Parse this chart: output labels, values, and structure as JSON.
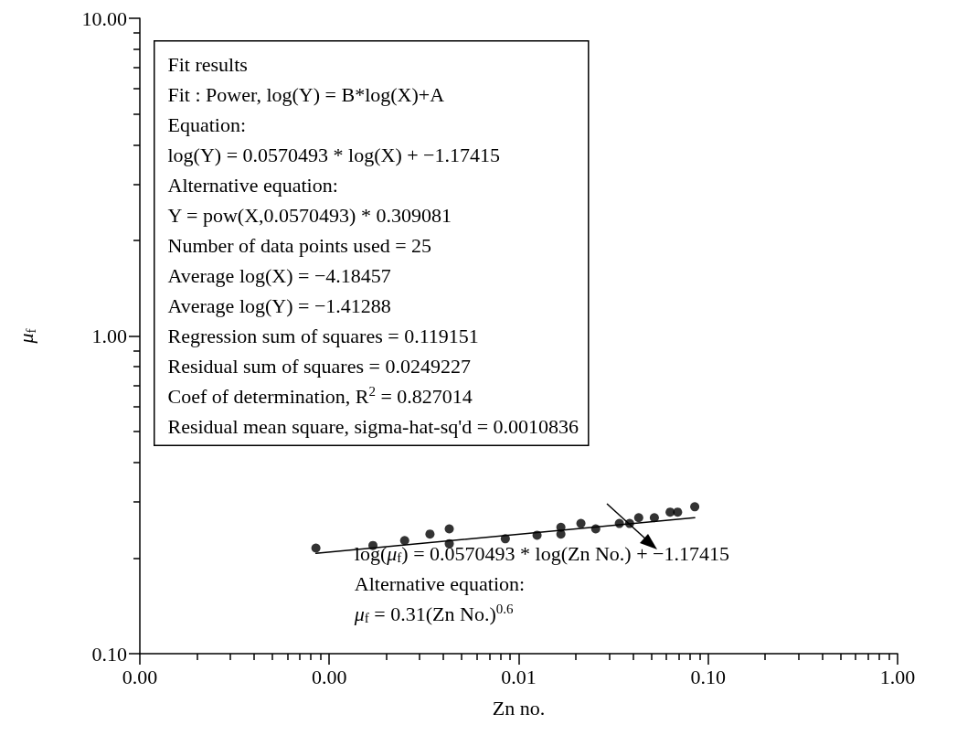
{
  "chart_data": {
    "type": "scatter",
    "xlabel": "Zn no.",
    "ylabel": "μ$_{f}$",
    "log": "xy",
    "xlim": [
      0.0001,
      1
    ],
    "ylim": [
      0.1,
      10
    ],
    "grid": false,
    "xticks": [
      {
        "value": 0.0001,
        "label": "0.00"
      },
      {
        "value": 0.0002,
        "label": null
      },
      {
        "value": 0.0003,
        "label": null
      },
      {
        "value": 0.0004,
        "label": null
      },
      {
        "value": 0.0005,
        "label": null
      },
      {
        "value": 0.0006,
        "label": null
      },
      {
        "value": 0.0007,
        "label": null
      },
      {
        "value": 0.0008,
        "label": null
      },
      {
        "value": 0.0009,
        "label": null
      },
      {
        "value": 0.001,
        "label": "0.00"
      },
      {
        "value": 0.002,
        "label": null
      },
      {
        "value": 0.003,
        "label": null
      },
      {
        "value": 0.004,
        "label": null
      },
      {
        "value": 0.005,
        "label": null
      },
      {
        "value": 0.006,
        "label": null
      },
      {
        "value": 0.007,
        "label": null
      },
      {
        "value": 0.008,
        "label": null
      },
      {
        "value": 0.009,
        "label": null
      },
      {
        "value": 0.01,
        "label": "0.01"
      },
      {
        "value": 0.02,
        "label": null
      },
      {
        "value": 0.03,
        "label": null
      },
      {
        "value": 0.04,
        "label": null
      },
      {
        "value": 0.05,
        "label": null
      },
      {
        "value": 0.06,
        "label": null
      },
      {
        "value": 0.07,
        "label": null
      },
      {
        "value": 0.08,
        "label": null
      },
      {
        "value": 0.09,
        "label": null
      },
      {
        "value": 0.1,
        "label": "0.10"
      },
      {
        "value": 0.2,
        "label": null
      },
      {
        "value": 0.3,
        "label": null
      },
      {
        "value": 0.4,
        "label": null
      },
      {
        "value": 0.5,
        "label": null
      },
      {
        "value": 0.6,
        "label": null
      },
      {
        "value": 0.7,
        "label": null
      },
      {
        "value": 0.8,
        "label": null
      },
      {
        "value": 0.9,
        "label": null
      },
      {
        "value": 1,
        "label": "1.00"
      }
    ],
    "yticks": [
      {
        "value": 0.1,
        "label": "0.10"
      },
      {
        "value": 0.2,
        "label": null
      },
      {
        "value": 0.3,
        "label": null
      },
      {
        "value": 0.4,
        "label": null
      },
      {
        "value": 0.5,
        "label": null
      },
      {
        "value": 0.6,
        "label": null
      },
      {
        "value": 0.7,
        "label": null
      },
      {
        "value": 0.8,
        "label": null
      },
      {
        "value": 0.9,
        "label": null
      },
      {
        "value": 1,
        "label": "1.00"
      },
      {
        "value": 2,
        "label": null
      },
      {
        "value": 3,
        "label": null
      },
      {
        "value": 4,
        "label": null
      },
      {
        "value": 5,
        "label": null
      },
      {
        "value": 6,
        "label": null
      },
      {
        "value": 7,
        "label": null
      },
      {
        "value": 8,
        "label": null
      },
      {
        "value": 9,
        "label": null
      },
      {
        "value": 10,
        "label": "10.00"
      }
    ],
    "series": [
      {
        "color": "#000000",
        "marker": "circle",
        "x": [
          0.00085,
          0.0017,
          0.0025,
          0.0034,
          0.0043,
          0.0043,
          0.0085,
          0.0125,
          0.0167,
          0.0167,
          0.0213,
          0.0255,
          0.034,
          0.0385,
          0.043,
          0.052,
          0.063,
          0.069,
          0.085
        ],
        "values": [
          0.215,
          0.219,
          0.227,
          0.238,
          0.247,
          0.222,
          0.23,
          0.236,
          0.25,
          0.238,
          0.257,
          0.247,
          0.257,
          0.257,
          0.268,
          0.268,
          0.279,
          0.279,
          0.29
        ]
      },
      {
        "type": "line",
        "marker": "none",
        "color": "#000000",
        "x": [
          0.00085,
          0.085
        ],
        "values": [
          0.207,
          0.268
        ]
      }
    ],
    "annotations": [
      "Fit results\nFit : Power, log(Y) = B*log(X)+A\nEquation:\nlog(Y) = 0.0570493 * log(X) + −1.17415\nAlternative equation:\nY = pow(X,0.0570493) * 0.309081\nNumber of data points used = 25\nAverage log(X) = −4.18457\nAverage log(Y) = −1.41288\nRegression sum of squares = 0.119151\nResidual sum of squares = 0.0249227\nCoef of determination, R$^{2}$ = 0.827014\nResidual mean square, sigma-hat-sq'd = 0.0010836",
      {
        "text": "log(μ$_{f}$) = 0.0570493 * log(Zn No.) + −1.17415",
        "x": 0.0385,
        "y": 0.2566
      },
      "Alternative equation:",
      "μ$_{f}$ = 0.31(Zn No.)$^{0.6}$"
    ]
  }
}
